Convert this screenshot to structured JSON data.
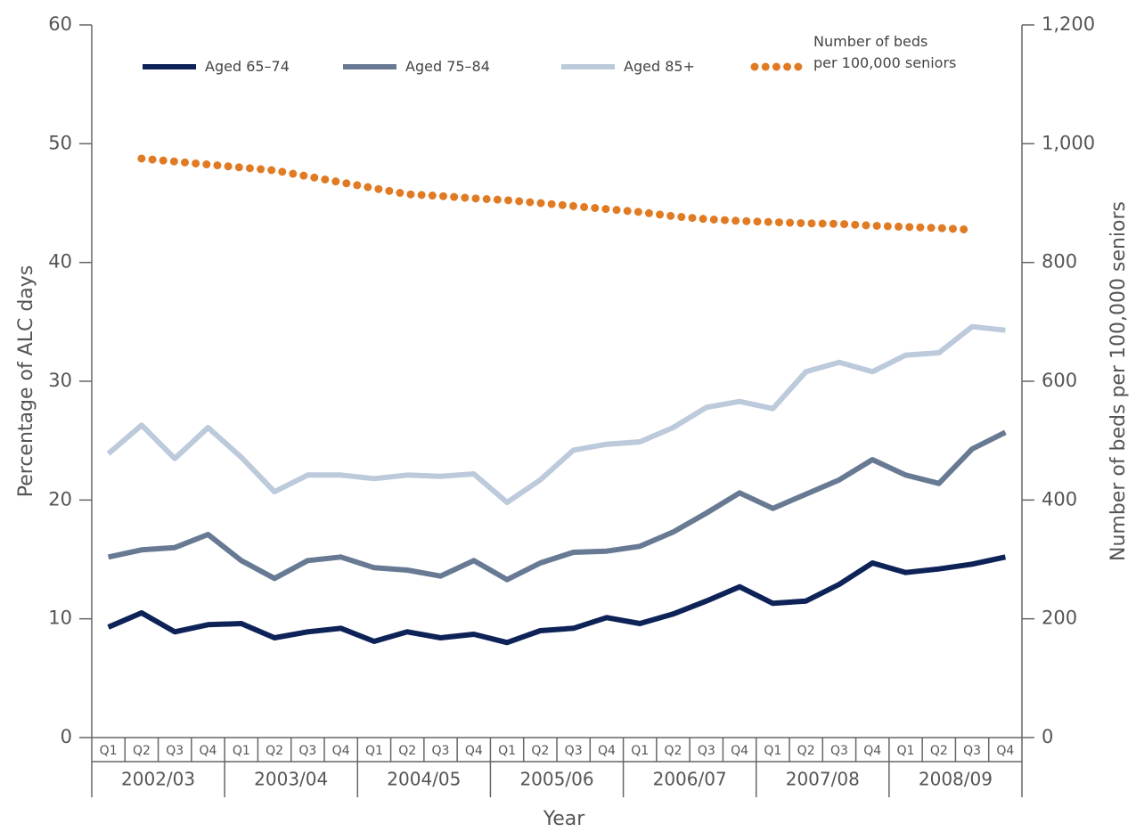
{
  "chart_data": {
    "type": "line",
    "x_label": "Year",
    "y_label": "Percentage of ALC days",
    "y2_label": "Number of beds per 100,000 seniors",
    "categories": [
      "Q1",
      "Q2",
      "Q3",
      "Q4",
      "Q1",
      "Q2",
      "Q3",
      "Q4",
      "Q1",
      "Q2",
      "Q3",
      "Q4",
      "Q1",
      "Q2",
      "Q3",
      "Q4",
      "Q1",
      "Q2",
      "Q3",
      "Q4",
      "Q1",
      "Q2",
      "Q3",
      "Q4",
      "Q1",
      "Q2",
      "Q3",
      "Q4"
    ],
    "groups": [
      "2002/03",
      "2003/04",
      "2004/05",
      "2005/06",
      "2006/07",
      "2007/08",
      "2008/09"
    ],
    "ylim": [
      0,
      60
    ],
    "yticks": [
      0,
      10,
      20,
      30,
      40,
      50,
      60
    ],
    "y2lim": [
      0,
      1200
    ],
    "y2ticks": [
      0,
      200,
      400,
      600,
      800,
      {
        "value": 1000,
        "label": "1,000"
      },
      {
        "value": 1200,
        "label": "1,200"
      }
    ],
    "series": [
      {
        "name": "Aged 65–74",
        "color": "#0d2257",
        "values": [
          9.3,
          10.5,
          8.9,
          9.5,
          9.6,
          8.4,
          8.9,
          9.2,
          8.1,
          8.9,
          8.4,
          8.7,
          8.0,
          9.0,
          9.2,
          10.1,
          9.6,
          10.4,
          11.5,
          12.7,
          11.3,
          11.5,
          12.9,
          14.7,
          13.9,
          14.2,
          14.6,
          15.2
        ]
      },
      {
        "name": "Aged 75–84",
        "color": "#687a93",
        "values": [
          15.2,
          15.8,
          16.0,
          17.1,
          14.9,
          13.4,
          14.9,
          15.2,
          14.3,
          14.1,
          13.6,
          14.9,
          13.3,
          14.7,
          15.6,
          15.7,
          16.1,
          17.3,
          18.9,
          20.6,
          19.3,
          20.5,
          21.7,
          23.4,
          22.1,
          21.4,
          24.3,
          25.7
        ]
      },
      {
        "name": "Aged 85+",
        "color": "#bccadb",
        "values": [
          23.9,
          26.3,
          23.5,
          26.1,
          23.6,
          20.7,
          22.1,
          22.1,
          21.8,
          22.1,
          22.0,
          22.2,
          19.8,
          21.7,
          24.2,
          24.7,
          24.9,
          26.1,
          27.8,
          28.3,
          27.7,
          30.8,
          31.6,
          30.8,
          32.2,
          32.4,
          34.6,
          34.3
        ]
      },
      {
        "name": "Number of beds\nper 100,000 seniors",
        "color": "#e07b24",
        "axis": "y2",
        "dotted": true,
        "values": [
          null,
          975,
          970,
          965,
          960,
          955,
          945,
          935,
          925,
          915,
          912,
          908,
          905,
          900,
          895,
          890,
          885,
          878,
          873,
          870,
          868,
          866,
          865,
          862,
          860,
          858,
          855,
          null
        ]
      }
    ]
  }
}
